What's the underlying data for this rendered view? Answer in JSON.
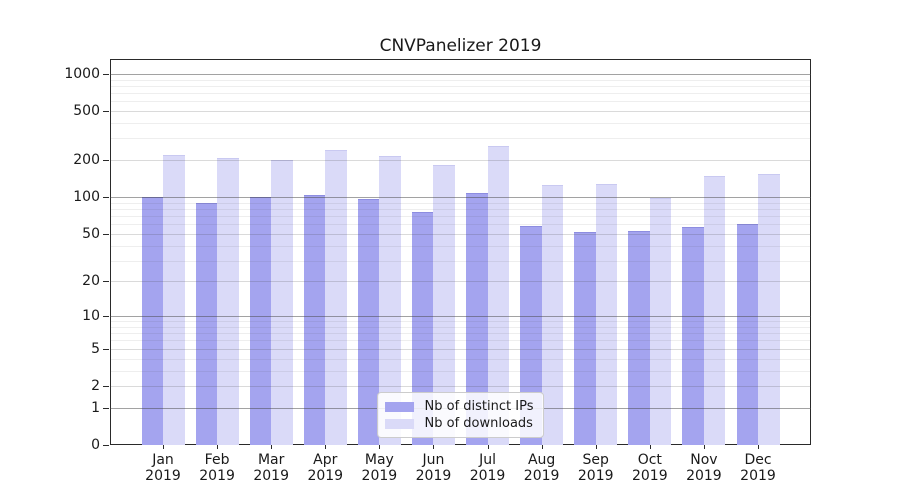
{
  "chart_data": {
    "type": "bar",
    "title": "CNVPanelizer 2019",
    "categories": [
      "Jan",
      "Feb",
      "Mar",
      "Apr",
      "May",
      "Jun",
      "Jul",
      "Aug",
      "Sep",
      "Oct",
      "Nov",
      "Dec"
    ],
    "category_year": "2019",
    "series": [
      {
        "name": "Nb of distinct IPs",
        "color": "#a4a4ef",
        "edge_color": "#8d8de0",
        "values": [
          100,
          90,
          100,
          104,
          97,
          76,
          108,
          58,
          52,
          53,
          57,
          60
        ]
      },
      {
        "name": "Nb of downloads",
        "color": "#dadaf8",
        "edge_color": "#c9c9f1",
        "values": [
          220,
          207,
          202,
          240,
          216,
          182,
          260,
          125,
          127,
          98,
          148,
          153
        ]
      }
    ],
    "yscale": "log1p",
    "ylim": [
      0,
      1320
    ],
    "yticks": [
      0,
      1,
      2,
      5,
      10,
      20,
      50,
      100,
      200,
      500,
      1000
    ],
    "grid": true,
    "legend_position": "lower center",
    "grid_colors": {
      "major": "rgba(70,70,70,0.50)",
      "mid": "rgba(70,70,70,0.20)",
      "minor": "rgba(70,70,70,0.09)"
    }
  }
}
